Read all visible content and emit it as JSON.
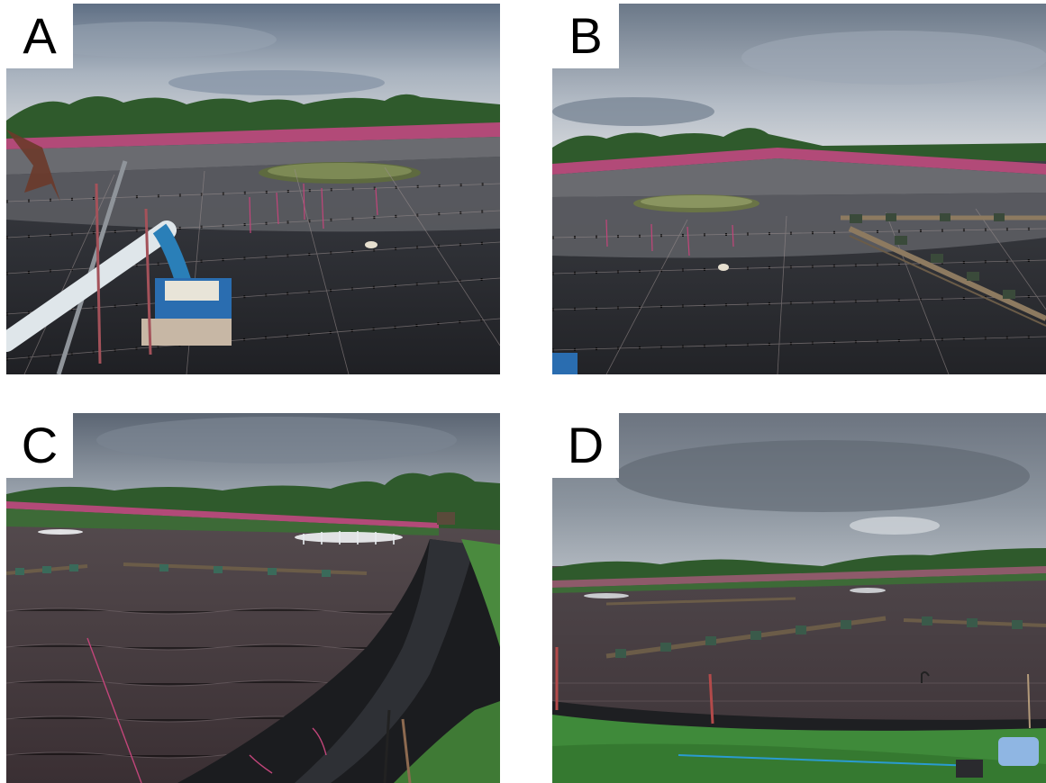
{
  "figure": {
    "panels": [
      {
        "label": "A"
      },
      {
        "label": "B"
      },
      {
        "label": "C"
      },
      {
        "label": "D"
      }
    ]
  },
  "colors": {
    "sky": "#6f7f92",
    "cloud": "#c9d0d8",
    "trees": "#2f5a2c",
    "pink_net": "#b24a78",
    "liner": "#2c2e33",
    "water": "#5d5458",
    "grass": "#3f8a3a",
    "pipe": "#dfe6ea",
    "bucket": "#2a7fb8"
  }
}
